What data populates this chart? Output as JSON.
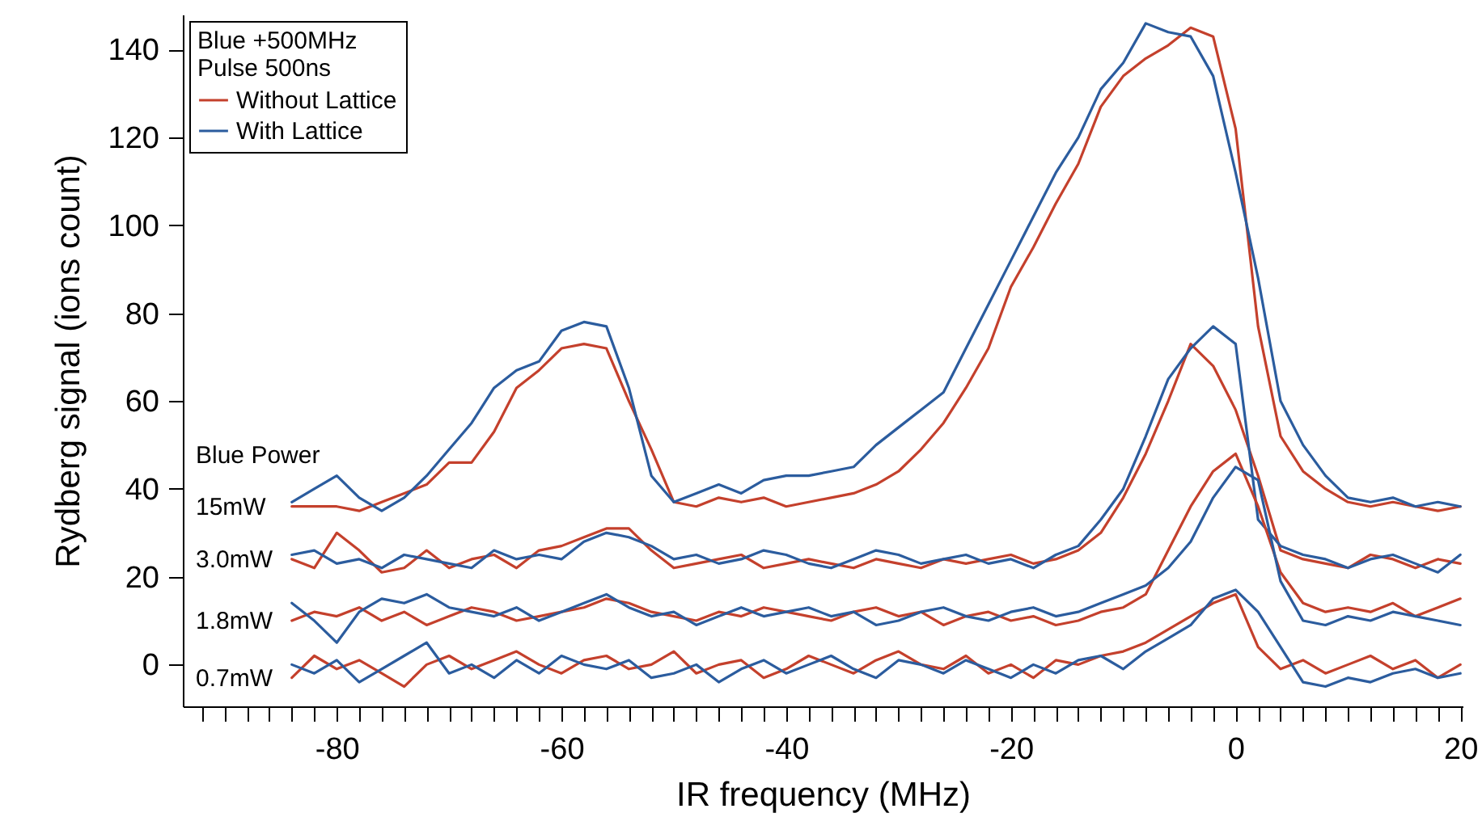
{
  "chart_data": {
    "type": "line",
    "xlabel": "IR frequency (MHz)",
    "ylabel": "Rydberg signal (ions count)",
    "legend": "top left",
    "line_style": "solid",
    "xlim": [
      -93.7,
      20.2
    ],
    "ylim": [
      -9.5,
      148
    ],
    "xticks": [
      {
        "value": -92,
        "label": null
      },
      {
        "value": -90,
        "label": null
      },
      {
        "value": -88,
        "label": null
      },
      {
        "value": -86,
        "label": null
      },
      {
        "value": -84,
        "label": null
      },
      {
        "value": -82,
        "label": null
      },
      -80,
      {
        "value": -78,
        "label": null
      },
      {
        "value": -76,
        "label": null
      },
      {
        "value": -74,
        "label": null
      },
      {
        "value": -72,
        "label": null
      },
      {
        "value": -70,
        "label": null
      },
      {
        "value": -68,
        "label": null
      },
      {
        "value": -66,
        "label": null
      },
      {
        "value": -64,
        "label": null
      },
      {
        "value": -62,
        "label": null
      },
      -60,
      {
        "value": -58,
        "label": null
      },
      {
        "value": -56,
        "label": null
      },
      {
        "value": -54,
        "label": null
      },
      {
        "value": -52,
        "label": null
      },
      {
        "value": -50,
        "label": null
      },
      {
        "value": -48,
        "label": null
      },
      {
        "value": -46,
        "label": null
      },
      {
        "value": -44,
        "label": null
      },
      {
        "value": -42,
        "label": null
      },
      -40,
      {
        "value": -38,
        "label": null
      },
      {
        "value": -36,
        "label": null
      },
      {
        "value": -34,
        "label": null
      },
      {
        "value": -32,
        "label": null
      },
      {
        "value": -30,
        "label": null
      },
      {
        "value": -28,
        "label": null
      },
      {
        "value": -26,
        "label": null
      },
      {
        "value": -24,
        "label": null
      },
      {
        "value": -22,
        "label": null
      },
      -20,
      {
        "value": -18,
        "label": null
      },
      {
        "value": -16,
        "label": null
      },
      {
        "value": -14,
        "label": null
      },
      {
        "value": -12,
        "label": null
      },
      {
        "value": -10,
        "label": null
      },
      {
        "value": -8,
        "label": null
      },
      {
        "value": -6,
        "label": null
      },
      {
        "value": -4,
        "label": null
      },
      {
        "value": -2,
        "label": null
      },
      0,
      {
        "value": 2,
        "label": null
      },
      {
        "value": 4,
        "label": null
      },
      {
        "value": 6,
        "label": null
      },
      {
        "value": 8,
        "label": null
      },
      {
        "value": 10,
        "label": null
      },
      {
        "value": 12,
        "label": null
      },
      {
        "value": 14,
        "label": null
      },
      {
        "value": 16,
        "label": null
      },
      {
        "value": 18,
        "label": null
      },
      20
    ],
    "yticks": [
      0,
      20,
      40,
      60,
      80,
      100,
      120,
      140
    ],
    "annotations": [
      "Blue +500MHz",
      "Pulse 500ns",
      "Blue Power",
      "15mW",
      "3.0mW",
      "1.8mW",
      "0.7mW"
    ],
    "x": [
      -84,
      -82,
      -80,
      -78,
      -76,
      -74,
      -72,
      -70,
      -68,
      -66,
      -64,
      -62,
      -60,
      -58,
      -56,
      -54,
      -52,
      -50,
      -48,
      -46,
      -44,
      -42,
      -40,
      -38,
      -36,
      -34,
      -32,
      -30,
      -28,
      -26,
      -24,
      -22,
      -20,
      -18,
      -16,
      -14,
      -12,
      -10,
      -8,
      -6,
      -4,
      -2,
      0,
      2,
      4,
      6,
      8,
      10,
      12,
      14,
      16,
      18,
      20
    ],
    "series": [
      {
        "name": "Without Lattice",
        "color": "#c4402c",
        "values": [
          36,
          36,
          36,
          35,
          37,
          39,
          41,
          46,
          46,
          53,
          63,
          67,
          72,
          73,
          72,
          60,
          49,
          37,
          36,
          38,
          37,
          38,
          36,
          37,
          38,
          39,
          41,
          44,
          49,
          55,
          63,
          72,
          86,
          95,
          105,
          114,
          127,
          134,
          138,
          141,
          145,
          143,
          122,
          77,
          52,
          44,
          40,
          37,
          36,
          37,
          36,
          35,
          36
        ]
      },
      {
        "name": "With Lattice",
        "color": "#2b5c9e",
        "values": [
          37,
          40,
          43,
          38,
          35,
          38,
          43,
          49,
          55,
          63,
          67,
          69,
          76,
          78,
          77,
          63,
          43,
          37,
          39,
          41,
          39,
          42,
          43,
          43,
          44,
          45,
          50,
          54,
          58,
          62,
          72,
          82,
          92,
          102,
          112,
          120,
          131,
          137,
          146,
          144,
          143,
          134,
          112,
          88,
          60,
          50,
          43,
          38,
          37,
          38,
          36,
          37,
          36
        ]
      },
      {
        "color": "#c4402c",
        "values": [
          24,
          22,
          30,
          26,
          21,
          22,
          26,
          22,
          24,
          25,
          22,
          26,
          27,
          29,
          31,
          31,
          26,
          22,
          23,
          24,
          25,
          22,
          23,
          24,
          23,
          22,
          24,
          23,
          22,
          24,
          23,
          24,
          25,
          23,
          24,
          26,
          30,
          38,
          48,
          60,
          73,
          68,
          58,
          43,
          26,
          24,
          23,
          22,
          25,
          24,
          22,
          24,
          23
        ]
      },
      {
        "color": "#2b5c9e",
        "values": [
          25,
          26,
          23,
          24,
          22,
          25,
          24,
          23,
          22,
          26,
          24,
          25,
          24,
          28,
          30,
          29,
          27,
          24,
          25,
          23,
          24,
          26,
          25,
          23,
          22,
          24,
          26,
          25,
          23,
          24,
          25,
          23,
          24,
          22,
          25,
          27,
          33,
          40,
          52,
          65,
          72,
          77,
          73,
          33,
          27,
          25,
          24,
          22,
          24,
          25,
          23,
          21,
          25
        ]
      },
      {
        "color": "#c4402c",
        "values": [
          10,
          12,
          11,
          13,
          10,
          12,
          9,
          11,
          13,
          12,
          10,
          11,
          12,
          13,
          15,
          14,
          12,
          11,
          10,
          12,
          11,
          13,
          12,
          11,
          10,
          12,
          13,
          11,
          12,
          9,
          11,
          12,
          10,
          11,
          9,
          10,
          12,
          13,
          16,
          26,
          36,
          44,
          48,
          36,
          21,
          14,
          12,
          13,
          12,
          14,
          11,
          13,
          15
        ]
      },
      {
        "color": "#2b5c9e",
        "values": [
          14,
          10,
          5,
          12,
          15,
          14,
          16,
          13,
          12,
          11,
          13,
          10,
          12,
          14,
          16,
          13,
          11,
          12,
          9,
          11,
          13,
          11,
          12,
          13,
          11,
          12,
          9,
          10,
          12,
          13,
          11,
          10,
          12,
          13,
          11,
          12,
          14,
          16,
          18,
          22,
          28,
          38,
          45,
          42,
          19,
          10,
          9,
          11,
          10,
          12,
          11,
          10,
          9
        ]
      },
      {
        "color": "#c4402c",
        "values": [
          -3,
          2,
          -1,
          1,
          -2,
          -5,
          0,
          2,
          -1,
          1,
          3,
          0,
          -2,
          1,
          2,
          -1,
          0,
          3,
          -2,
          0,
          1,
          -3,
          -1,
          2,
          0,
          -2,
          1,
          3,
          0,
          -1,
          2,
          -2,
          0,
          -3,
          1,
          0,
          2,
          3,
          5,
          8,
          11,
          14,
          16,
          4,
          -1,
          1,
          -2,
          0,
          2,
          -1,
          1,
          -3,
          0
        ]
      },
      {
        "color": "#2b5c9e",
        "values": [
          0,
          -2,
          1,
          -4,
          -1,
          2,
          5,
          -2,
          0,
          -3,
          1,
          -2,
          2,
          0,
          -1,
          1,
          -3,
          -2,
          0,
          -4,
          -1,
          1,
          -2,
          0,
          2,
          -1,
          -3,
          1,
          0,
          -2,
          1,
          -1,
          -3,
          0,
          -2,
          1,
          2,
          -1,
          3,
          6,
          9,
          15,
          17,
          12,
          4,
          -4,
          -5,
          -3,
          -4,
          -2,
          -1,
          -3,
          -2
        ]
      }
    ]
  }
}
